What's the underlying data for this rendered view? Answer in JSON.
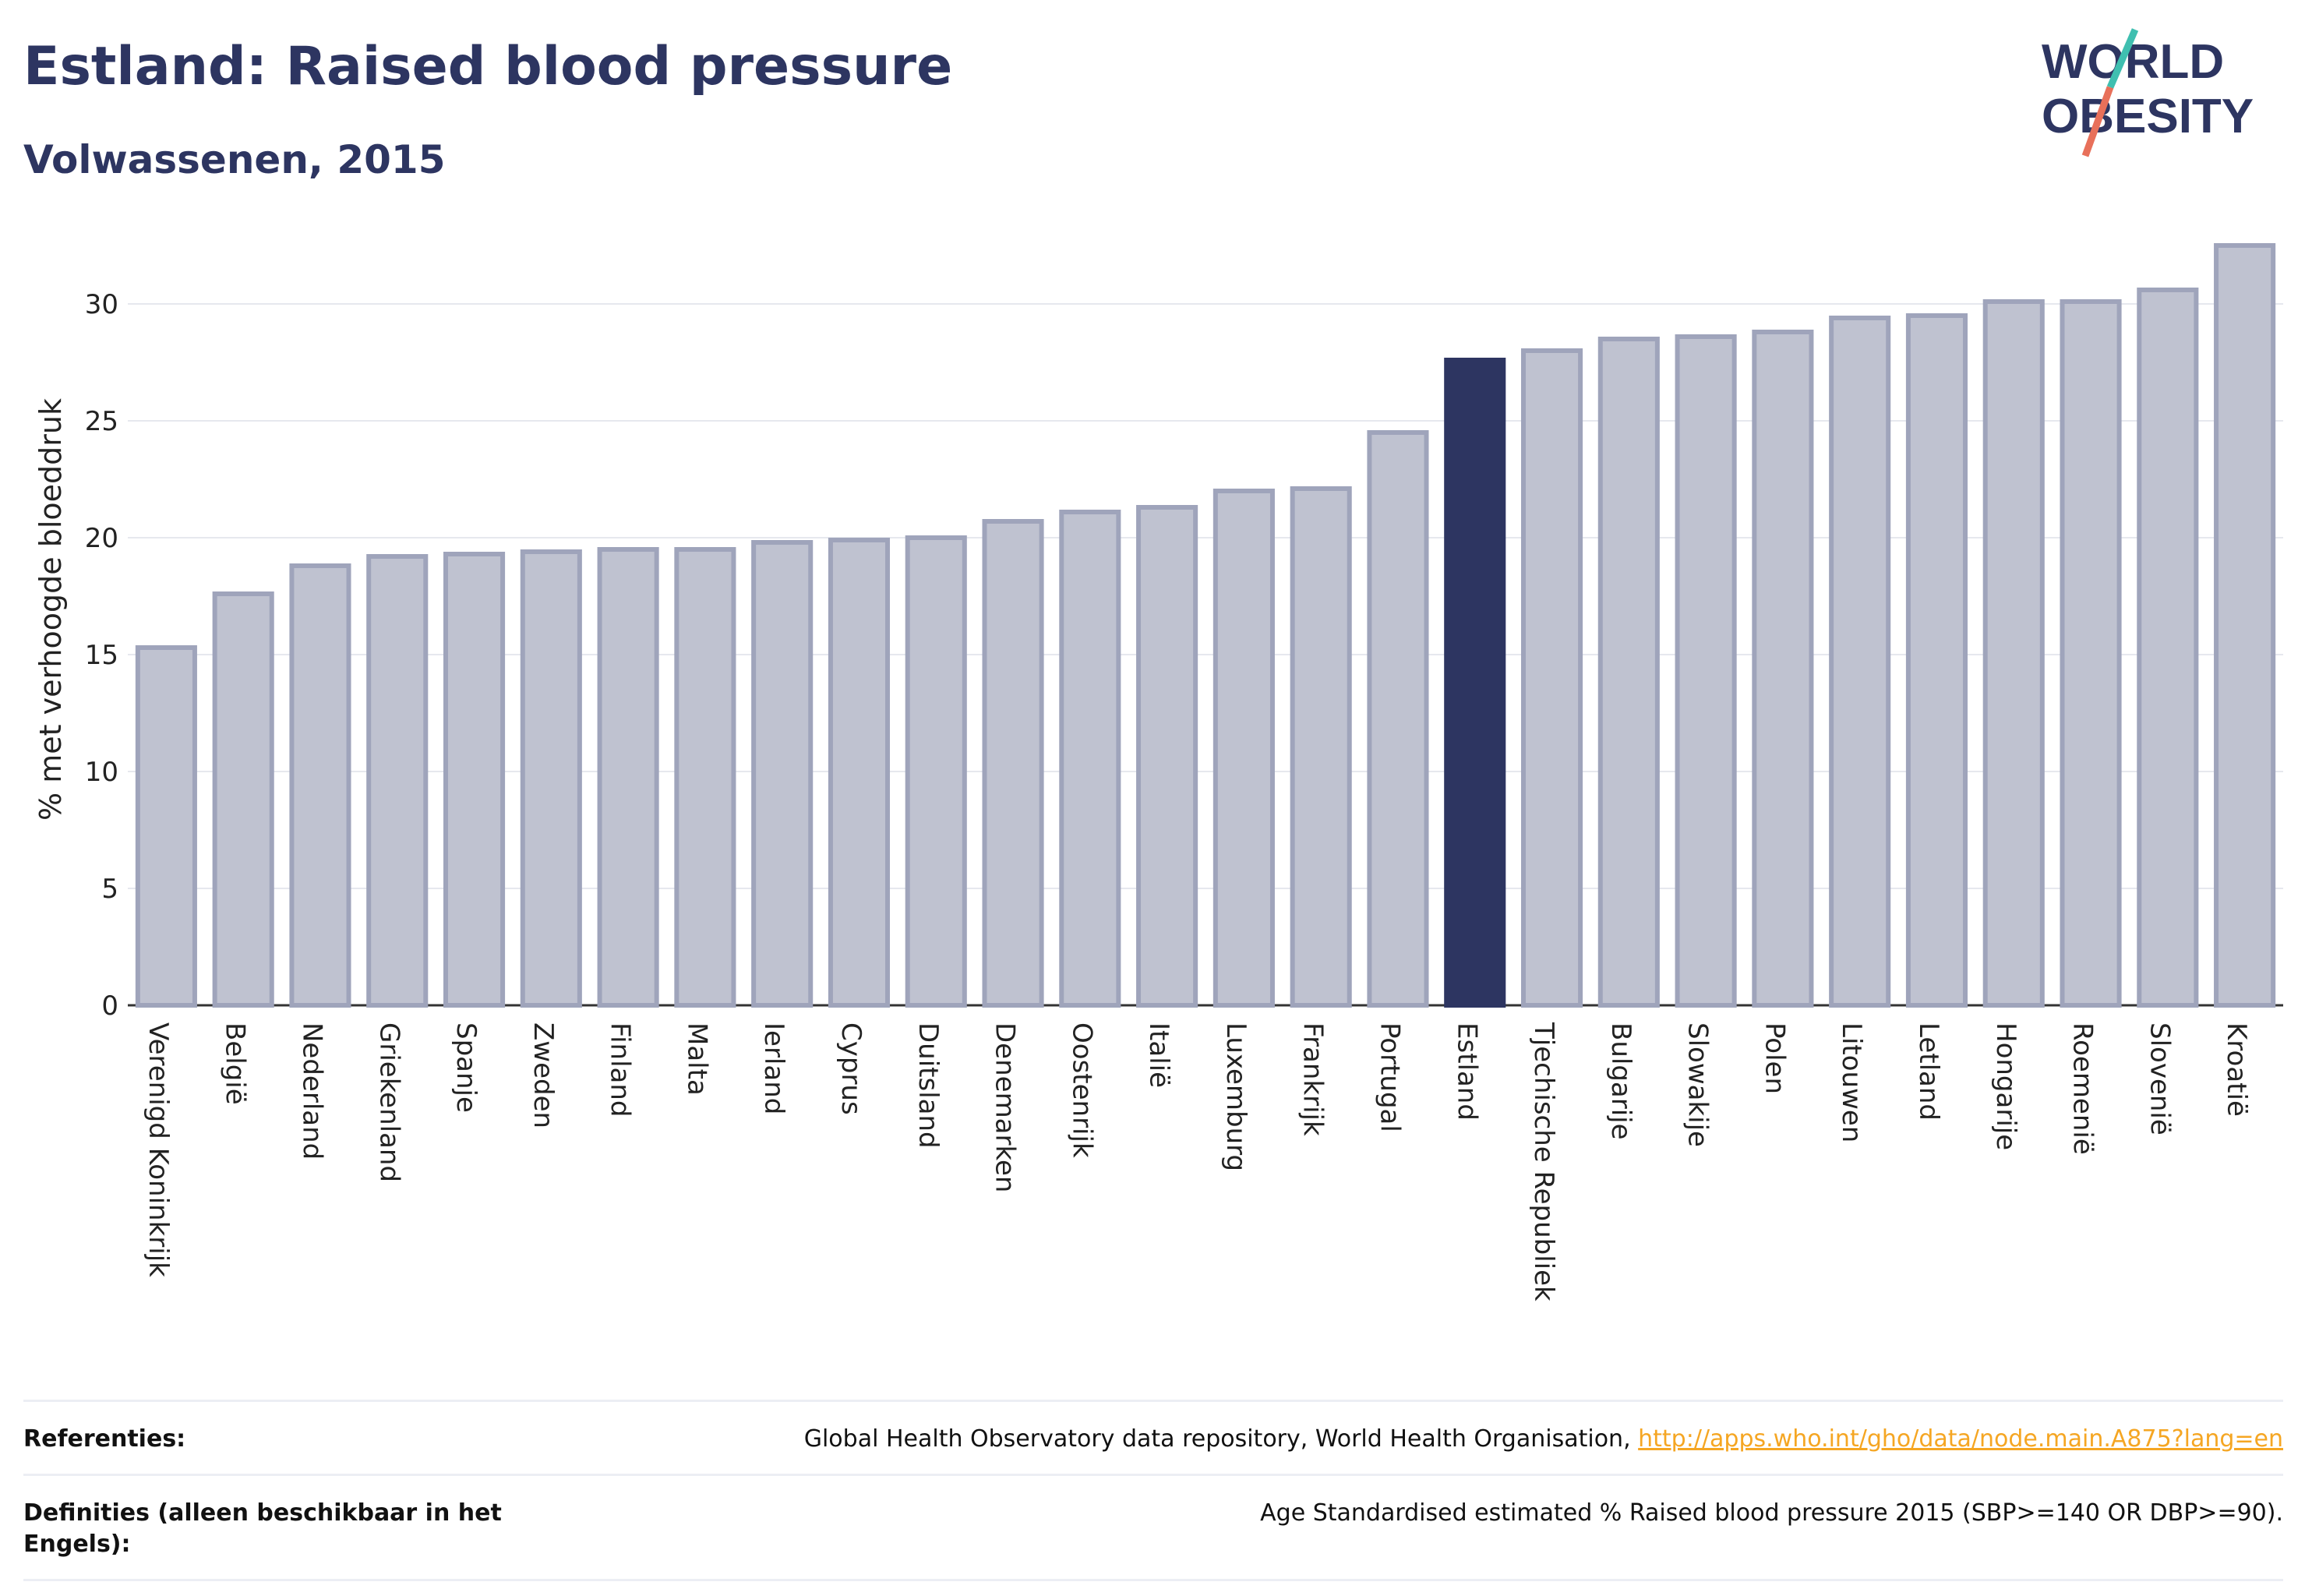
{
  "header": {
    "title": "Estland: Raised blood pressure",
    "subtitle": "Volwassenen, 2015",
    "logo_line1": "WORLD",
    "logo_line2": "OBESITY"
  },
  "colors": {
    "bar": "#bfc2d0",
    "bar_border": "#9fa4bb",
    "highlight": "#2d3561",
    "grid": "#e6e8ee",
    "text": "#2d3561",
    "logo_teal": "#3fbfb0",
    "logo_coral": "#e8705a"
  },
  "chart_data": {
    "type": "bar",
    "ylabel": "% met verhoogde bloeddruk",
    "xlabel": "",
    "ylim": [
      0,
      33
    ],
    "yticks": [
      0,
      5,
      10,
      15,
      20,
      25,
      30
    ],
    "grid": true,
    "highlight": "Estland",
    "categories": [
      "Verenigd Koninkrijk",
      "België",
      "Nederland",
      "Griekenland",
      "Spanje",
      "Zweden",
      "Finland",
      "Malta",
      "Ierland",
      "Cyprus",
      "Duitsland",
      "Denemarken",
      "Oostenrijk",
      "Italië",
      "Luxemburg",
      "Frankrijk",
      "Portugal",
      "Estland",
      "Tjechische Republiek",
      "Bulgarije",
      "Slowakije",
      "Polen",
      "Litouwen",
      "Letland",
      "Hongarije",
      "Roemenië",
      "Slovenië",
      "Kroatië"
    ],
    "values": [
      15.3,
      17.6,
      18.8,
      19.2,
      19.3,
      19.4,
      19.5,
      19.5,
      19.8,
      19.9,
      20.0,
      20.7,
      21.1,
      21.3,
      22.0,
      22.1,
      24.5,
      27.6,
      28.0,
      28.5,
      28.6,
      28.8,
      29.4,
      29.5,
      30.1,
      30.1,
      30.6,
      32.5
    ]
  },
  "references": {
    "ref_label": "Referenties:",
    "ref_text": "Global Health Observatory data repository, World Health Organisation, ",
    "ref_link": "http://apps.who.int/gho/data/node.main.A875?lang=en",
    "def_label": "Definities (alleen beschikbaar in het Engels):",
    "def_text": "Age Standardised estimated % Raised blood pressure 2015 (SBP>=140 OR DBP>=90)."
  }
}
